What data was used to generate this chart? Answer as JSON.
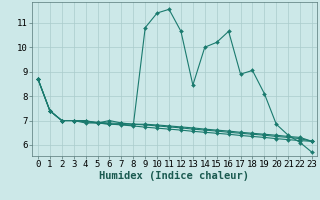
{
  "xlabel": "Humidex (Indice chaleur)",
  "background_color": "#cce8e8",
  "grid_color": "#aacccc",
  "line_color": "#1a7a6e",
  "xlim_min": -0.5,
  "xlim_max": 23.4,
  "ylim_min": 5.55,
  "ylim_max": 11.85,
  "yticks": [
    6,
    7,
    8,
    9,
    10,
    11
  ],
  "xticks": [
    0,
    1,
    2,
    3,
    4,
    5,
    6,
    7,
    8,
    9,
    10,
    11,
    12,
    13,
    14,
    15,
    16,
    17,
    18,
    19,
    20,
    21,
    22,
    23
  ],
  "series": [
    [
      8.7,
      7.4,
      7.0,
      7.0,
      6.9,
      6.9,
      6.85,
      6.85,
      6.8,
      10.8,
      11.4,
      11.55,
      10.65,
      8.45,
      10.0,
      10.2,
      10.65,
      8.9,
      9.05,
      8.1,
      6.85,
      6.4,
      6.1,
      5.7
    ],
    [
      8.7,
      7.4,
      7.0,
      7.0,
      7.0,
      6.9,
      7.0,
      6.9,
      6.85,
      6.85,
      6.82,
      6.78,
      6.74,
      6.7,
      6.65,
      6.61,
      6.57,
      6.52,
      6.48,
      6.44,
      6.4,
      6.35,
      6.31,
      6.15
    ],
    [
      8.7,
      7.4,
      7.0,
      7.0,
      6.97,
      6.93,
      6.9,
      6.88,
      6.85,
      6.82,
      6.78,
      6.74,
      6.7,
      6.65,
      6.61,
      6.57,
      6.52,
      6.48,
      6.44,
      6.4,
      6.35,
      6.31,
      6.26,
      6.15
    ],
    [
      8.7,
      7.4,
      7.0,
      7.0,
      6.95,
      6.9,
      6.86,
      6.82,
      6.78,
      6.73,
      6.69,
      6.65,
      6.61,
      6.56,
      6.52,
      6.48,
      6.44,
      6.39,
      6.35,
      6.31,
      6.26,
      6.22,
      6.18,
      6.15
    ]
  ],
  "marker": "D",
  "marker_size": 2.0,
  "linewidth": 0.8,
  "tick_fontsize": 6.5,
  "xlabel_fontsize": 7.5
}
